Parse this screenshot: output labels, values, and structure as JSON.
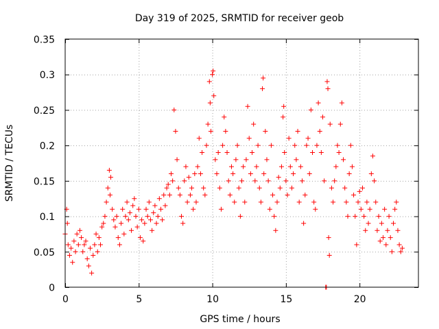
{
  "chart_data": {
    "type": "scatter",
    "title": "Day 319 of 2025, SRMTID for receiver geob",
    "xlabel": "GPS time / hours",
    "ylabel": "SRMTID / TECUs",
    "xlim": [
      0,
      24
    ],
    "ylim": [
      0,
      0.35
    ],
    "x_ticks": [
      0,
      5,
      10,
      15,
      20
    ],
    "x_tick_labels": [
      "0",
      "5",
      "10",
      "15",
      "20"
    ],
    "y_ticks": [
      0,
      0.05,
      0.1,
      0.15,
      0.2,
      0.25,
      0.3,
      0.35
    ],
    "y_tick_labels": [
      "0",
      "0.05",
      "0.1",
      "0.15",
      "0.2",
      "0.25",
      "0.3",
      "0.35"
    ],
    "grid": true,
    "marker": "plus",
    "color": "#ff0000",
    "series": [
      {
        "name": "SRMTID",
        "points": [
          [
            0.0,
            0.075
          ],
          [
            0.1,
            0.11
          ],
          [
            0.15,
            0.09
          ],
          [
            0.2,
            0.06
          ],
          [
            0.3,
            0.045
          ],
          [
            0.4,
            0.055
          ],
          [
            0.5,
            0.035
          ],
          [
            0.6,
            0.065
          ],
          [
            0.7,
            0.05
          ],
          [
            0.8,
            0.075
          ],
          [
            0.9,
            0.06
          ],
          [
            1.0,
            0.08
          ],
          [
            1.1,
            0.07
          ],
          [
            1.2,
            0.05
          ],
          [
            1.3,
            0.06
          ],
          [
            1.4,
            0.065
          ],
          [
            1.5,
            0.04
          ],
          [
            1.6,
            0.03
          ],
          [
            1.7,
            0.055
          ],
          [
            1.8,
            0.02
          ],
          [
            1.9,
            0.045
          ],
          [
            2.0,
            0.06
          ],
          [
            2.1,
            0.075
          ],
          [
            2.2,
            0.05
          ],
          [
            2.3,
            0.07
          ],
          [
            2.4,
            0.06
          ],
          [
            2.5,
            0.085
          ],
          [
            2.6,
            0.09
          ],
          [
            2.7,
            0.1
          ],
          [
            2.8,
            0.12
          ],
          [
            2.9,
            0.14
          ],
          [
            3.0,
            0.165
          ],
          [
            3.05,
            0.13
          ],
          [
            3.1,
            0.155
          ],
          [
            3.2,
            0.11
          ],
          [
            3.3,
            0.095
          ],
          [
            3.4,
            0.085
          ],
          [
            3.5,
            0.1
          ],
          [
            3.6,
            0.07
          ],
          [
            3.7,
            0.06
          ],
          [
            3.8,
            0.09
          ],
          [
            3.9,
            0.11
          ],
          [
            4.0,
            0.075
          ],
          [
            4.1,
            0.1
          ],
          [
            4.2,
            0.12
          ],
          [
            4.3,
            0.095
          ],
          [
            4.4,
            0.105
          ],
          [
            4.5,
            0.08
          ],
          [
            4.6,
            0.115
          ],
          [
            4.7,
            0.125
          ],
          [
            4.8,
            0.1
          ],
          [
            4.9,
            0.085
          ],
          [
            5.0,
            0.11
          ],
          [
            5.1,
            0.07
          ],
          [
            5.2,
            0.095
          ],
          [
            5.3,
            0.065
          ],
          [
            5.4,
            0.09
          ],
          [
            5.5,
            0.11
          ],
          [
            5.6,
            0.1
          ],
          [
            5.7,
            0.12
          ],
          [
            5.8,
            0.095
          ],
          [
            5.9,
            0.08
          ],
          [
            6.0,
            0.105
          ],
          [
            6.1,
            0.115
          ],
          [
            6.2,
            0.09
          ],
          [
            6.3,
            0.1
          ],
          [
            6.4,
            0.125
          ],
          [
            6.5,
            0.11
          ],
          [
            6.6,
            0.095
          ],
          [
            6.7,
            0.13
          ],
          [
            6.8,
            0.115
          ],
          [
            6.9,
            0.14
          ],
          [
            7.0,
            0.145
          ],
          [
            7.1,
            0.13
          ],
          [
            7.2,
            0.16
          ],
          [
            7.3,
            0.15
          ],
          [
            7.4,
            0.25
          ],
          [
            7.5,
            0.22
          ],
          [
            7.6,
            0.18
          ],
          [
            7.7,
            0.14
          ],
          [
            7.8,
            0.13
          ],
          [
            7.9,
            0.1
          ],
          [
            8.0,
            0.09
          ],
          [
            8.1,
            0.15
          ],
          [
            8.2,
            0.17
          ],
          [
            8.3,
            0.12
          ],
          [
            8.4,
            0.155
          ],
          [
            8.5,
            0.13
          ],
          [
            8.6,
            0.14
          ],
          [
            8.7,
            0.11
          ],
          [
            8.8,
            0.16
          ],
          [
            8.9,
            0.12
          ],
          [
            9.0,
            0.17
          ],
          [
            9.1,
            0.21
          ],
          [
            9.2,
            0.16
          ],
          [
            9.3,
            0.19
          ],
          [
            9.4,
            0.14
          ],
          [
            9.5,
            0.13
          ],
          [
            9.6,
            0.2
          ],
          [
            9.7,
            0.23
          ],
          [
            9.8,
            0.29
          ],
          [
            9.85,
            0.26
          ],
          [
            9.9,
            0.22
          ],
          [
            10.0,
            0.3
          ],
          [
            10.05,
            0.305
          ],
          [
            10.1,
            0.27
          ],
          [
            10.2,
            0.18
          ],
          [
            10.3,
            0.16
          ],
          [
            10.4,
            0.19
          ],
          [
            10.5,
            0.14
          ],
          [
            10.6,
            0.11
          ],
          [
            10.7,
            0.2
          ],
          [
            10.8,
            0.24
          ],
          [
            10.9,
            0.22
          ],
          [
            11.0,
            0.19
          ],
          [
            11.1,
            0.15
          ],
          [
            11.2,
            0.13
          ],
          [
            11.3,
            0.17
          ],
          [
            11.4,
            0.16
          ],
          [
            11.5,
            0.12
          ],
          [
            11.6,
            0.18
          ],
          [
            11.7,
            0.2
          ],
          [
            11.8,
            0.14
          ],
          [
            11.9,
            0.1
          ],
          [
            12.0,
            0.15
          ],
          [
            12.1,
            0.17
          ],
          [
            12.2,
            0.12
          ],
          [
            12.3,
            0.18
          ],
          [
            12.4,
            0.255
          ],
          [
            12.5,
            0.21
          ],
          [
            12.6,
            0.16
          ],
          [
            12.7,
            0.19
          ],
          [
            12.8,
            0.23
          ],
          [
            12.9,
            0.15
          ],
          [
            13.0,
            0.17
          ],
          [
            13.1,
            0.2
          ],
          [
            13.2,
            0.14
          ],
          [
            13.3,
            0.12
          ],
          [
            13.4,
            0.28
          ],
          [
            13.45,
            0.295
          ],
          [
            13.5,
            0.16
          ],
          [
            13.6,
            0.22
          ],
          [
            13.7,
            0.18
          ],
          [
            13.8,
            0.15
          ],
          [
            13.9,
            0.11
          ],
          [
            14.0,
            0.2
          ],
          [
            14.1,
            0.13
          ],
          [
            14.2,
            0.1
          ],
          [
            14.3,
            0.08
          ],
          [
            14.4,
            0.12
          ],
          [
            14.5,
            0.155
          ],
          [
            14.6,
            0.14
          ],
          [
            14.7,
            0.17
          ],
          [
            14.8,
            0.24
          ],
          [
            14.85,
            0.255
          ],
          [
            14.9,
            0.19
          ],
          [
            15.0,
            0.15
          ],
          [
            15.1,
            0.13
          ],
          [
            15.2,
            0.21
          ],
          [
            15.3,
            0.17
          ],
          [
            15.4,
            0.14
          ],
          [
            15.5,
            0.16
          ],
          [
            15.6,
            0.2
          ],
          [
            15.7,
            0.18
          ],
          [
            15.8,
            0.22
          ],
          [
            15.9,
            0.12
          ],
          [
            16.0,
            0.17
          ],
          [
            16.1,
            0.15
          ],
          [
            16.2,
            0.09
          ],
          [
            16.3,
            0.13
          ],
          [
            16.4,
            0.2
          ],
          [
            16.5,
            0.21
          ],
          [
            16.6,
            0.16
          ],
          [
            16.7,
            0.25
          ],
          [
            16.8,
            0.19
          ],
          [
            16.9,
            0.12
          ],
          [
            17.0,
            0.11
          ],
          [
            17.1,
            0.2
          ],
          [
            17.2,
            0.26
          ],
          [
            17.3,
            0.22
          ],
          [
            17.4,
            0.19
          ],
          [
            17.5,
            0.24
          ],
          [
            17.6,
            0.15
          ],
          [
            17.7,
            0.0
          ],
          [
            17.75,
            0.0
          ],
          [
            17.8,
            0.29
          ],
          [
            17.85,
            0.28
          ],
          [
            17.9,
            0.07
          ],
          [
            17.95,
            0.045
          ],
          [
            18.0,
            0.23
          ],
          [
            18.1,
            0.14
          ],
          [
            18.2,
            0.12
          ],
          [
            18.3,
            0.15
          ],
          [
            18.4,
            0.17
          ],
          [
            18.5,
            0.2
          ],
          [
            18.6,
            0.19
          ],
          [
            18.7,
            0.23
          ],
          [
            18.8,
            0.26
          ],
          [
            18.9,
            0.18
          ],
          [
            19.0,
            0.14
          ],
          [
            19.1,
            0.12
          ],
          [
            19.2,
            0.1
          ],
          [
            19.3,
            0.16
          ],
          [
            19.4,
            0.2
          ],
          [
            19.5,
            0.17
          ],
          [
            19.6,
            0.13
          ],
          [
            19.7,
            0.1
          ],
          [
            19.8,
            0.06
          ],
          [
            19.9,
            0.12
          ],
          [
            20.0,
            0.135
          ],
          [
            20.1,
            0.11
          ],
          [
            20.2,
            0.14
          ],
          [
            20.3,
            0.1
          ],
          [
            20.4,
            0.08
          ],
          [
            20.5,
            0.12
          ],
          [
            20.6,
            0.09
          ],
          [
            20.7,
            0.11
          ],
          [
            20.8,
            0.16
          ],
          [
            20.9,
            0.185
          ],
          [
            21.0,
            0.15
          ],
          [
            21.1,
            0.12
          ],
          [
            21.2,
            0.08
          ],
          [
            21.3,
            0.1
          ],
          [
            21.4,
            0.065
          ],
          [
            21.5,
            0.09
          ],
          [
            21.6,
            0.07
          ],
          [
            21.7,
            0.11
          ],
          [
            21.8,
            0.06
          ],
          [
            21.9,
            0.08
          ],
          [
            22.0,
            0.1
          ],
          [
            22.1,
            0.07
          ],
          [
            22.2,
            0.05
          ],
          [
            22.3,
            0.09
          ],
          [
            22.4,
            0.11
          ],
          [
            22.5,
            0.12
          ],
          [
            22.6,
            0.08
          ],
          [
            22.7,
            0.06
          ],
          [
            22.8,
            0.05
          ],
          [
            22.9,
            0.055
          ]
        ]
      }
    ]
  }
}
